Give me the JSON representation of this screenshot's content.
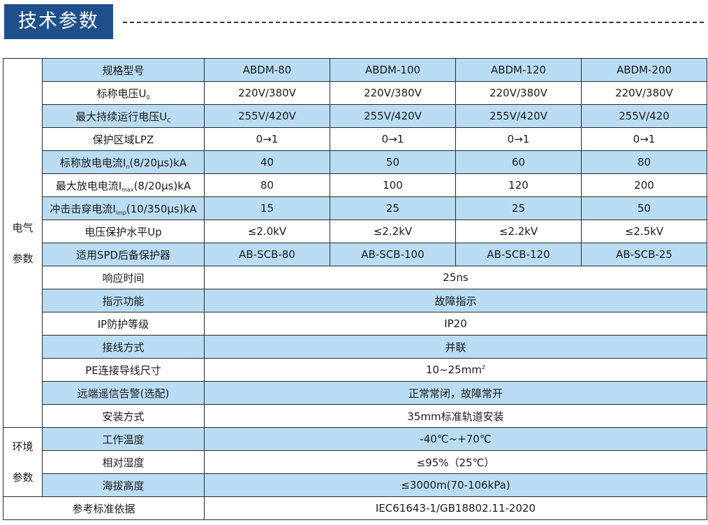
{
  "title": "技术参数",
  "columns": [
    "规格型号",
    "ABDM-80",
    "ABDM-100",
    "ABDM-120",
    "ABDM-200"
  ],
  "sections": {
    "electrical": [
      "电气",
      "参数"
    ],
    "environment": [
      "环境",
      "参数"
    ]
  },
  "rows": {
    "voltage": {
      "label": "标称电压U",
      "label_sub": "0",
      "values": [
        "220V/380V",
        "220V/380V",
        "220V/380V",
        "220V/380V"
      ]
    },
    "max_voltage": {
      "label": "最大持续运行电压U",
      "label_sub": "C",
      "values": [
        "255V/420V",
        "255V/420V",
        "255V/420V",
        "255V/420"
      ]
    },
    "lpz": {
      "label": "保护区域LPZ",
      "values": [
        "0→1",
        "0→1",
        "0→1",
        "0→1"
      ]
    },
    "in_current": {
      "label": "标称放电电流I",
      "label_sub": "n",
      "label_tail": "(8/20μs)kA",
      "values": [
        "40",
        "50",
        "60",
        "80"
      ]
    },
    "imax_current": {
      "label": "最大放电电流I",
      "label_sub": "max",
      "label_tail": "(8/20μs)kA",
      "values": [
        "80",
        "100",
        "120",
        "200"
      ]
    },
    "iimp_current": {
      "label": "冲击击穿电流I",
      "label_sub": "imp",
      "label_tail": "(10/350μs)kA",
      "values": [
        "15",
        "25",
        "25",
        "50"
      ]
    },
    "up_level": {
      "label": "电压保护水平Up",
      "values": [
        "≤2.0kV",
        "≤2.2kV",
        "≤2.2kV",
        "≤2.5kV"
      ]
    },
    "backup": {
      "label": "适用SPD后备保护器",
      "values": [
        "AB-SCB-80",
        "AB-SCB-100",
        "AB-SCB-120",
        "AB-SCB-25"
      ]
    },
    "response": {
      "label": "响应时间",
      "value": "25ns"
    },
    "indicator": {
      "label": "指示功能",
      "value": "故障指示"
    },
    "ip": {
      "label": "IP防护等级",
      "value": "IP20"
    },
    "wiring": {
      "label": "接线方式",
      "value": "并联"
    },
    "pe": {
      "label": "PE连接导线尺寸",
      "value": "10~25mm",
      "value_sup": "2"
    },
    "remote": {
      "label": "远端遥信告警(选配)",
      "value": "正常常闭，故障常开"
    },
    "install": {
      "label": "安装方式",
      "value": "35mm标准轨道安装"
    },
    "temp": {
      "label": "工作温度",
      "value": "-40℃~+70℃"
    },
    "humidity": {
      "label": "相对湿度",
      "value": "≤95%（25℃）"
    },
    "altitude": {
      "label": "海拔高度",
      "value": "≤3000m(70-106kPa)"
    },
    "standard": {
      "label": "参考标准依据",
      "value": "IEC61643-1/GB18802.11-2020"
    }
  }
}
